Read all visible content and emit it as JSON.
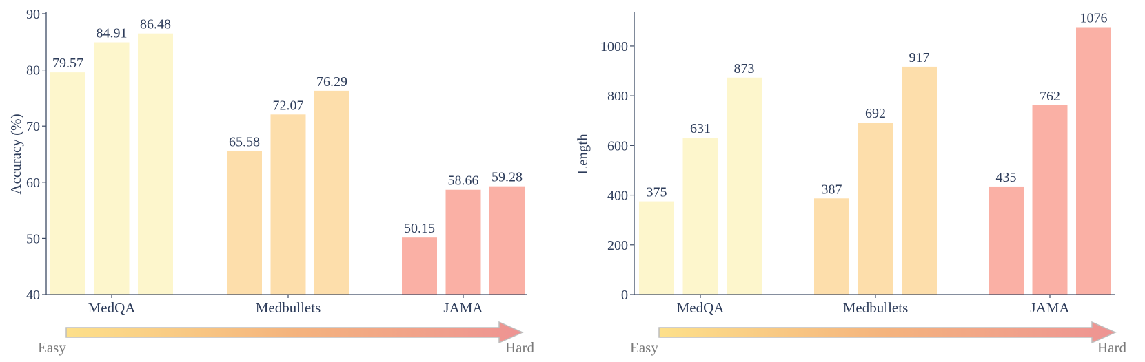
{
  "palette": {
    "easy_fill": "#fdf6cc",
    "mid_fill": "#fddeab",
    "hard_fill": "#fab0a5",
    "axis": "#3c4a64",
    "text": "#2d3c5a",
    "arrow_start": "#fde08a",
    "arrow_mid": "#f4b37d",
    "arrow_end": "#ee9393",
    "arrow_stroke": "#bdbdbd"
  },
  "difficulty": {
    "easy": "Easy",
    "hard": "Hard"
  },
  "chart_data": [
    {
      "type": "bar",
      "categories": [
        "MedQA",
        "Medbullets",
        "JAMA"
      ],
      "values": [
        [
          79.57,
          84.91,
          86.48
        ],
        [
          65.58,
          72.07,
          76.29
        ],
        [
          50.15,
          58.66,
          59.28
        ]
      ],
      "ylabel": "Accuracy (%)",
      "ylim": [
        40,
        90
      ],
      "yticks": [
        40,
        50,
        60,
        70,
        80,
        90
      ],
      "value_labels": [
        [
          "79.57",
          "84.91",
          "86.48"
        ],
        [
          "65.58",
          "72.07",
          "76.29"
        ],
        [
          "50.15",
          "58.66",
          "59.28"
        ]
      ],
      "grid": false
    },
    {
      "type": "bar",
      "categories": [
        "MedQA",
        "Medbullets",
        "JAMA"
      ],
      "values": [
        [
          375,
          631,
          873
        ],
        [
          387,
          692,
          917
        ],
        [
          435,
          762,
          1076
        ]
      ],
      "ylabel": "Length",
      "ylim": [
        0,
        1130
      ],
      "yticks": [
        0,
        200,
        400,
        600,
        800,
        1000
      ],
      "value_labels": [
        [
          "375",
          "631",
          "873"
        ],
        [
          "387",
          "692",
          "917"
        ],
        [
          "435",
          "762",
          "1076"
        ]
      ],
      "grid": false
    }
  ]
}
